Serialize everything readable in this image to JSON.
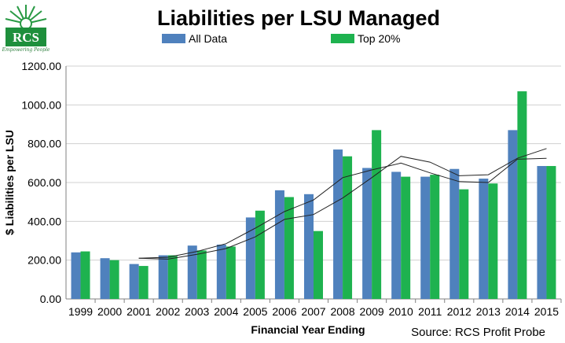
{
  "logo": {
    "text": "RCS",
    "tagline": "Empowering People"
  },
  "chart_data": {
    "type": "bar",
    "title": "Liabilities per LSU Managed",
    "xlabel": "Financial Year Ending",
    "ylabel": "$ Liabilities per LSU",
    "source": "Source: RCS Profit Probe",
    "categories": [
      "1999",
      "2000",
      "2001",
      "2002",
      "2003",
      "2004",
      "2005",
      "2006",
      "2007",
      "2008",
      "2009",
      "2010",
      "2011",
      "2012",
      "2013",
      "2014",
      "2015"
    ],
    "ylim": [
      0,
      1200
    ],
    "yticks": [
      "0.00",
      "200.00",
      "400.00",
      "600.00",
      "800.00",
      "1000.00",
      "1200.00"
    ],
    "grid": true,
    "legend_position": "top",
    "series": [
      {
        "name": "All Data",
        "color": "#4f81bd",
        "values": [
          240,
          210,
          180,
          225,
          275,
          280,
          420,
          560,
          540,
          770,
          675,
          655,
          630,
          670,
          620,
          870,
          685
        ]
      },
      {
        "name": "Top 20%",
        "color": "#1eb24f",
        "values": [
          245,
          200,
          170,
          225,
          250,
          270,
          455,
          525,
          350,
          735,
          870,
          630,
          640,
          565,
          595,
          1070,
          685
        ]
      }
    ],
    "trendlines": [
      {
        "color": "#222222",
        "values": [
          null,
          null,
          210,
          205,
          230,
          260,
          320,
          410,
          435,
          520,
          625,
          735,
          705,
          635,
          640,
          725,
          775
        ]
      },
      {
        "color": "#222222",
        "values": [
          null,
          null,
          210,
          215,
          245,
          285,
          365,
          450,
          510,
          625,
          665,
          700,
          650,
          605,
          600,
          720,
          725
        ]
      }
    ]
  }
}
